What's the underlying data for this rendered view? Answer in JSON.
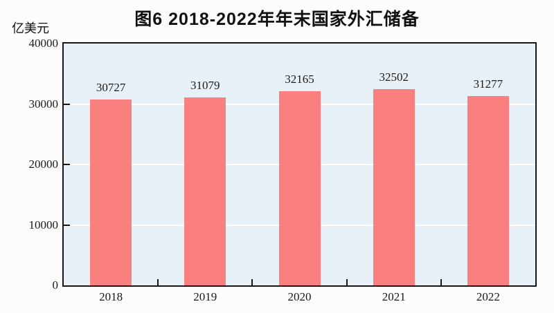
{
  "title": "图6  2018-2022年年末国家外汇储备",
  "unit_label": "亿美元",
  "chart_data": {
    "type": "bar",
    "title": "图6 2018-2022年年末国家外汇储备",
    "categories": [
      "2018",
      "2019",
      "2020",
      "2021",
      "2022"
    ],
    "values": [
      30727,
      31079,
      32165,
      32502,
      31277
    ],
    "value_labels": [
      "30727",
      "31079",
      "32165",
      "32502",
      "31277"
    ],
    "xlabel": "",
    "ylabel": "亿美元",
    "ylim": [
      0,
      40000
    ],
    "yticks": [
      0,
      10000,
      20000,
      30000,
      40000
    ],
    "ytick_labels": [
      "0",
      "10000",
      "20000",
      "30000",
      "40000"
    ],
    "grid": "horizontal",
    "legend": "none"
  },
  "colors": {
    "bar_fill": "#FA8080",
    "plot_background": "#E9F1F8",
    "gridline": "#FFFFFF",
    "axis": "#161616",
    "text": "#1a1a1a",
    "page_background": "#fcfcfd"
  }
}
